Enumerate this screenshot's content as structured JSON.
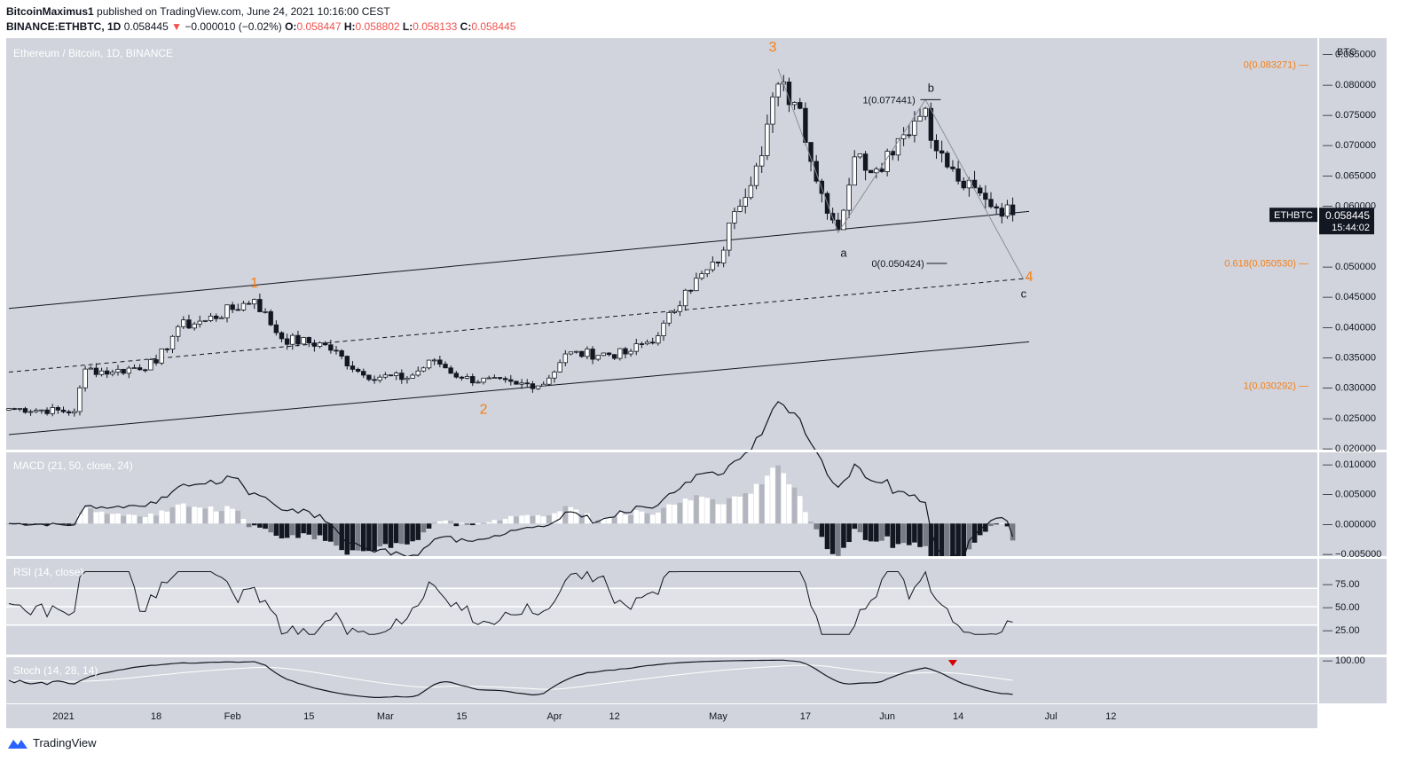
{
  "header": {
    "publisher": "BitcoinMaximus1",
    "published_text": "published on TradingView.com, June 24, 2021 10:16:00 CEST",
    "symbol_line": "BINANCE:ETHBTC, 1D",
    "last": "0.058445",
    "arrow": "▼",
    "change": "−0.000010 (−0.02%)",
    "o_label": "O:",
    "o": "0.058447",
    "h_label": "H:",
    "h": "0.058802",
    "l_label": "L:",
    "l": "0.058133",
    "c_label": "C:",
    "c": "0.058445"
  },
  "main_pane": {
    "title": "Ethereum / Bitcoin, 1D, BINANCE",
    "currency": "BTC",
    "price_labels": [
      "0.085000",
      "0.080000",
      "0.075000",
      "0.070000",
      "0.065000",
      "0.060000",
      "0.050000",
      "0.045000",
      "0.040000",
      "0.035000",
      "0.030000",
      "0.025000",
      "0.020000"
    ],
    "last_tag": {
      "symbol": "ETHBTC",
      "price": "0.058445",
      "countdown": "15:44:02"
    },
    "fib_right": [
      {
        "label": "0(0.083271)",
        "price": 0.083271
      },
      {
        "label": "0.618(0.050530)",
        "price": 0.05053
      },
      {
        "label": "1(0.030292)",
        "price": 0.030292
      }
    ],
    "fib_inner": [
      {
        "label": "1(0.077441)",
        "price": 0.077441
      },
      {
        "label": "0(0.050424)",
        "price": 0.050424
      }
    ],
    "wave_labels": [
      "1",
      "2",
      "3",
      "4"
    ],
    "abc_labels": [
      "a",
      "b",
      "c"
    ]
  },
  "x_axis": [
    "2021",
    "18",
    "Feb",
    "15",
    "Mar",
    "15",
    "Apr",
    "12",
    "May",
    "17",
    "Jun",
    "14",
    "Jul",
    "12"
  ],
  "macd": {
    "title": "MACD (21, 50, close, 24)",
    "labels": [
      "0.010000",
      "0.005000",
      "0.000000",
      "−0.005000"
    ]
  },
  "rsi": {
    "title": "RSI (14, close)",
    "labels": [
      "75.00",
      "50.00",
      "25.00"
    ]
  },
  "stoch": {
    "title": "Stoch (14, 28, 14)",
    "labels": [
      "100.00"
    ]
  },
  "footer": {
    "brand": "TradingView"
  },
  "colors": {
    "pane_bg": "#d1d4dc",
    "orange": "#f57f17",
    "red": "#ef5350",
    "dark": "#131722"
  },
  "chart_data": {
    "type": "candlestick",
    "title": "Ethereum / Bitcoin, 1D, BINANCE",
    "y_range": [
      0.02,
      0.087
    ],
    "x_ticks": [
      "2021",
      "18",
      "Feb",
      "15",
      "Mar",
      "15",
      "Apr",
      "12",
      "May",
      "17",
      "Jun",
      "14",
      "Jul",
      "12"
    ],
    "close_path": [
      {
        "date": "2020-12-22",
        "close": 0.0265
      },
      {
        "date": "2021-01-03",
        "close": 0.026
      },
      {
        "date": "2021-01-05",
        "close": 0.033
      },
      {
        "date": "2021-01-10",
        "close": 0.0325
      },
      {
        "date": "2021-01-18",
        "close": 0.034
      },
      {
        "date": "2021-01-22",
        "close": 0.04
      },
      {
        "date": "2021-01-27",
        "close": 0.041
      },
      {
        "date": "2021-02-05",
        "close": 0.0445
      },
      {
        "date": "2021-02-10",
        "close": 0.038
      },
      {
        "date": "2021-02-18",
        "close": 0.037
      },
      {
        "date": "2021-02-25",
        "close": 0.032
      },
      {
        "date": "2021-03-05",
        "close": 0.0315
      },
      {
        "date": "2021-03-10",
        "close": 0.0345
      },
      {
        "date": "2021-03-15",
        "close": 0.0315
      },
      {
        "date": "2021-03-25",
        "close": 0.0305
      },
      {
        "date": "2021-03-30",
        "close": 0.0305
      },
      {
        "date": "2021-04-03",
        "close": 0.0355
      },
      {
        "date": "2021-04-14",
        "close": 0.0355
      },
      {
        "date": "2021-04-20",
        "close": 0.0385
      },
      {
        "date": "2021-04-25",
        "close": 0.046
      },
      {
        "date": "2021-05-01",
        "close": 0.0505
      },
      {
        "date": "2021-05-04",
        "close": 0.059
      },
      {
        "date": "2021-05-08",
        "close": 0.0665
      },
      {
        "date": "2021-05-12",
        "close": 0.08
      },
      {
        "date": "2021-05-16",
        "close": 0.076
      },
      {
        "date": "2021-05-19",
        "close": 0.064
      },
      {
        "date": "2021-05-23",
        "close": 0.056
      },
      {
        "date": "2021-05-26",
        "close": 0.068
      },
      {
        "date": "2021-05-30",
        "close": 0.066
      },
      {
        "date": "2021-06-03",
        "close": 0.071
      },
      {
        "date": "2021-06-08",
        "close": 0.076
      },
      {
        "date": "2021-06-10",
        "close": 0.069
      },
      {
        "date": "2021-06-14",
        "close": 0.064
      },
      {
        "date": "2021-06-19",
        "close": 0.061
      },
      {
        "date": "2021-06-24",
        "close": 0.058445
      }
    ],
    "key_levels": {
      "wave3_high": 0.0825,
      "wave_a_low": 0.0555,
      "wave_b_high": 0.077441,
      "last": 0.058445
    },
    "channel": {
      "upper": [
        {
          "date": "2020-12-22",
          "price": 0.043
        },
        {
          "date": "2021-06-27",
          "price": 0.059
        }
      ],
      "middle": [
        {
          "date": "2020-12-22",
          "price": 0.0325
        },
        {
          "date": "2021-06-27",
          "price": 0.048
        }
      ],
      "lower": [
        {
          "date": "2020-12-22",
          "price": 0.0222
        },
        {
          "date": "2021-06-27",
          "price": 0.0375
        }
      ]
    },
    "indicators": {
      "macd_range": [
        -0.005,
        0.011
      ],
      "rsi_range": [
        0,
        100
      ],
      "rsi_levels": [
        70,
        50,
        30
      ]
    }
  }
}
